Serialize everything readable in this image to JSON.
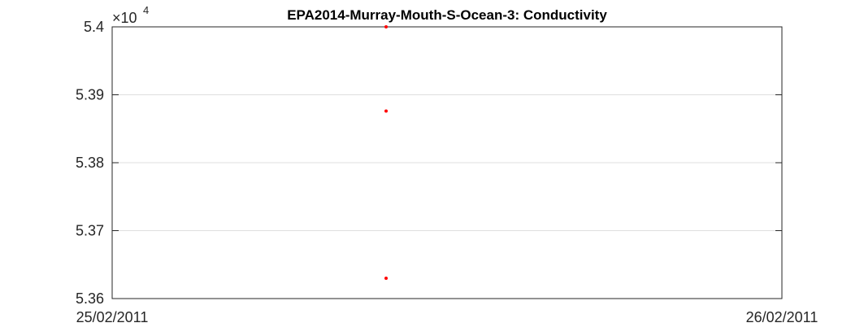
{
  "chart_data": {
    "type": "scatter",
    "title": "EPA2014-Murray-Mouth-S-Ocean-3: Conductivity",
    "xlabel": "",
    "ylabel": "",
    "x_tick_labels": [
      "25/02/2011",
      "26/02/2011"
    ],
    "xlim": [
      "25/02/2011",
      "26/02/2011"
    ],
    "y_multiplier": {
      "base_label": "×10",
      "exponent_label": "4",
      "value": 10000
    },
    "y_ticks": [
      5.36,
      5.37,
      5.38,
      5.39,
      5.4
    ],
    "y_tick_labels": [
      "5.36",
      "5.37",
      "5.38",
      "5.39",
      "5.4"
    ],
    "ylim": [
      53600,
      54000
    ],
    "grid": true,
    "series": [
      {
        "x_label": "25/02/2011 ~09:55",
        "x_fraction_of_day": 0.409,
        "values": [
          54000,
          53876,
          53630
        ],
        "color": "#ff0000",
        "marker": "dot"
      }
    ],
    "colors": {
      "marker": "#ff0000",
      "axis": "#262626",
      "grid": "#dfdfdf",
      "background": "#ffffff"
    }
  }
}
